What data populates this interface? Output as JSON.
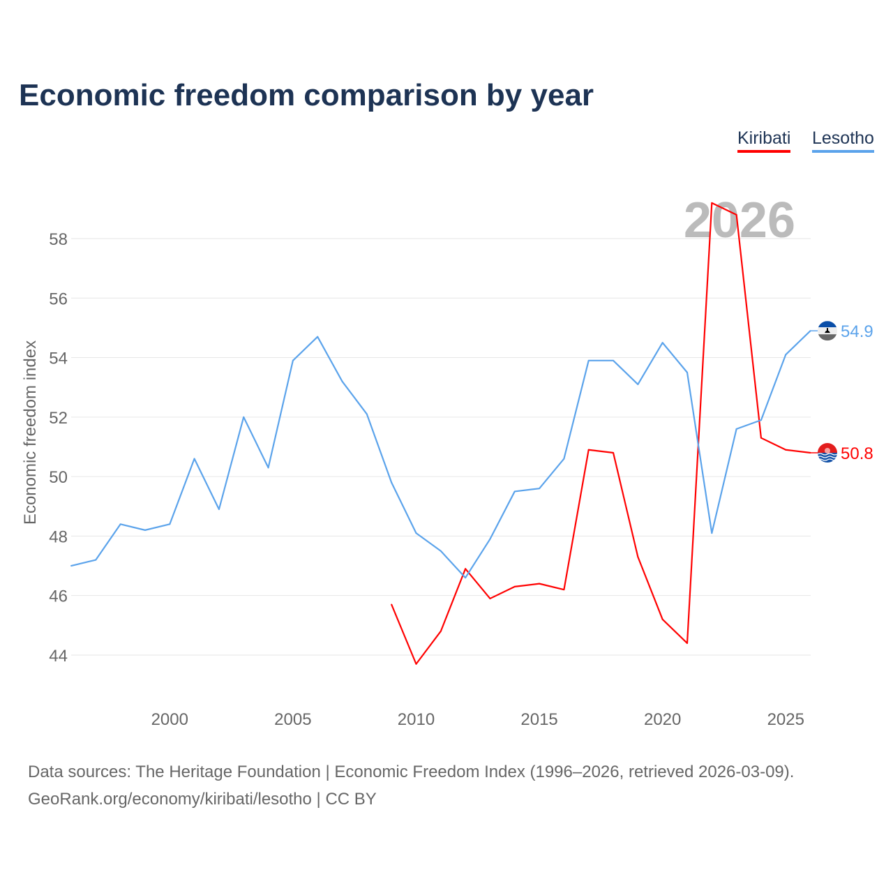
{
  "title": "Economic freedom comparison by year",
  "sources": {
    "line1": "Data sources: The Heritage Foundation | Economic Freedom Index (1996–2026, retrieved 2026-03-09).",
    "line2": "GeoRank.org/economy/kiribati/lesotho | CC BY"
  },
  "chart_data": {
    "type": "line",
    "title": "Economic freedom comparison by year",
    "xlabel": "",
    "ylabel": "Economic freedom index",
    "year_watermark": "2026",
    "xlim": [
      1996,
      2026
    ],
    "ylim": [
      42.4,
      59.6
    ],
    "x_ticks": [
      2000,
      2005,
      2010,
      2015,
      2020,
      2025
    ],
    "y_ticks": [
      44,
      46,
      48,
      50,
      52,
      54,
      56,
      58
    ],
    "legend_position": "top-right",
    "series": [
      {
        "name": "Kiribati",
        "color": "#ff0000",
        "end_label": "50.8",
        "x": [
          2009,
          2010,
          2011,
          2012,
          2013,
          2014,
          2015,
          2016,
          2017,
          2018,
          2019,
          2020,
          2021,
          2022,
          2023,
          2024,
          2025,
          2026
        ],
        "values": [
          45.7,
          43.7,
          44.8,
          46.9,
          45.9,
          46.3,
          46.4,
          46.2,
          50.9,
          50.8,
          47.3,
          45.2,
          44.4,
          59.2,
          58.8,
          51.3,
          50.9,
          50.8
        ]
      },
      {
        "name": "Lesotho",
        "color": "#5ba3eb",
        "end_label": "54.9",
        "x": [
          1996,
          1997,
          1998,
          1999,
          2000,
          2001,
          2002,
          2003,
          2004,
          2005,
          2006,
          2007,
          2008,
          2009,
          2010,
          2011,
          2012,
          2013,
          2014,
          2015,
          2016,
          2017,
          2018,
          2019,
          2020,
          2021,
          2022,
          2023,
          2024,
          2025,
          2026
        ],
        "values": [
          47.0,
          47.2,
          48.4,
          48.2,
          48.4,
          50.6,
          48.9,
          52.0,
          50.3,
          53.9,
          54.7,
          53.2,
          52.1,
          49.8,
          48.1,
          47.5,
          46.6,
          47.9,
          49.5,
          49.6,
          50.6,
          53.9,
          53.9,
          53.1,
          54.5,
          53.5,
          48.1,
          51.6,
          51.9,
          54.1,
          54.9
        ]
      }
    ]
  }
}
